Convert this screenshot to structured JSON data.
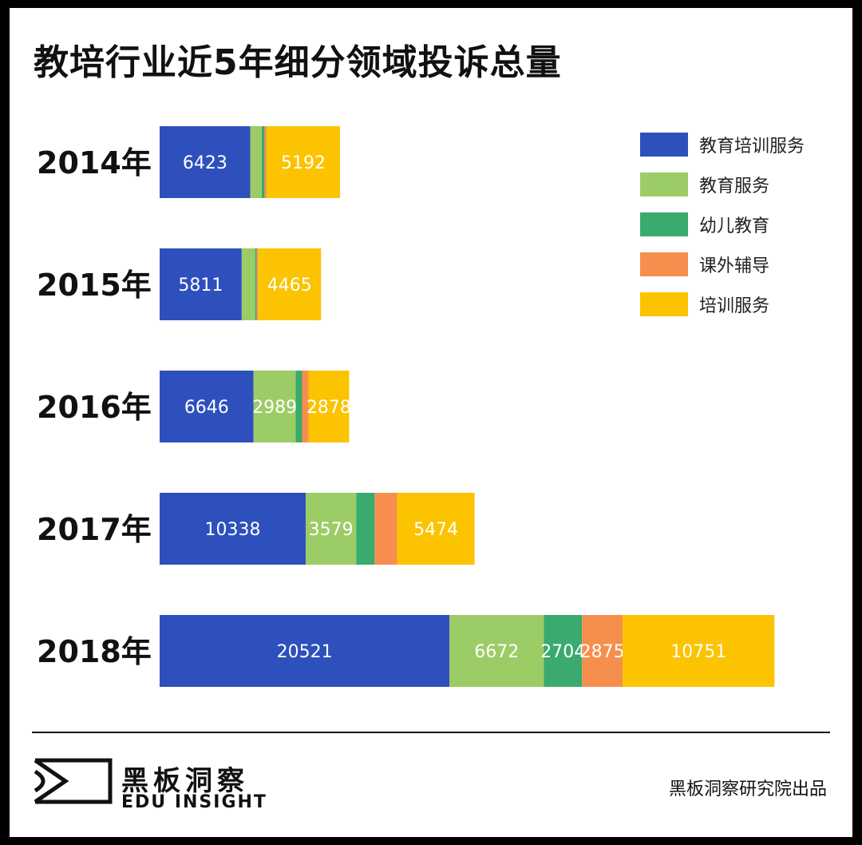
{
  "title": "教培行业近5年细分领域投诉总量",
  "chart_data": {
    "type": "bar",
    "orientation": "horizontal",
    "stacked": true,
    "categories": [
      "2014年",
      "2015年",
      "2016年",
      "2017年",
      "2018年"
    ],
    "series": [
      {
        "name": "教育培训服务",
        "color": "#2e50bd",
        "values": [
          6423,
          5811,
          6646,
          10338,
          20521
        ],
        "labels": [
          true,
          true,
          true,
          true,
          true
        ]
      },
      {
        "name": "教育服务",
        "color": "#9ccc65",
        "values": [
          800,
          950,
          2989,
          3579,
          6672
        ],
        "labels": [
          false,
          false,
          true,
          true,
          true
        ]
      },
      {
        "name": "幼儿教育",
        "color": "#3aaa6e",
        "values": [
          200,
          100,
          450,
          1300,
          2704
        ],
        "labels": [
          false,
          false,
          false,
          false,
          true
        ]
      },
      {
        "name": "课外辅导",
        "color": "#f68f4e",
        "values": [
          150,
          100,
          450,
          1600,
          2875
        ],
        "labels": [
          false,
          false,
          false,
          false,
          true
        ]
      },
      {
        "name": "培训服务",
        "color": "#fbc300",
        "values": [
          5192,
          4465,
          2878,
          5474,
          10751
        ],
        "labels": [
          true,
          true,
          true,
          true,
          true
        ]
      }
    ],
    "legend_position": "top-right",
    "grid": false
  },
  "brand": {
    "cn": "黑板洞察",
    "en": "EDU INSIGHT"
  },
  "credit": "黑板洞察研究院出品"
}
